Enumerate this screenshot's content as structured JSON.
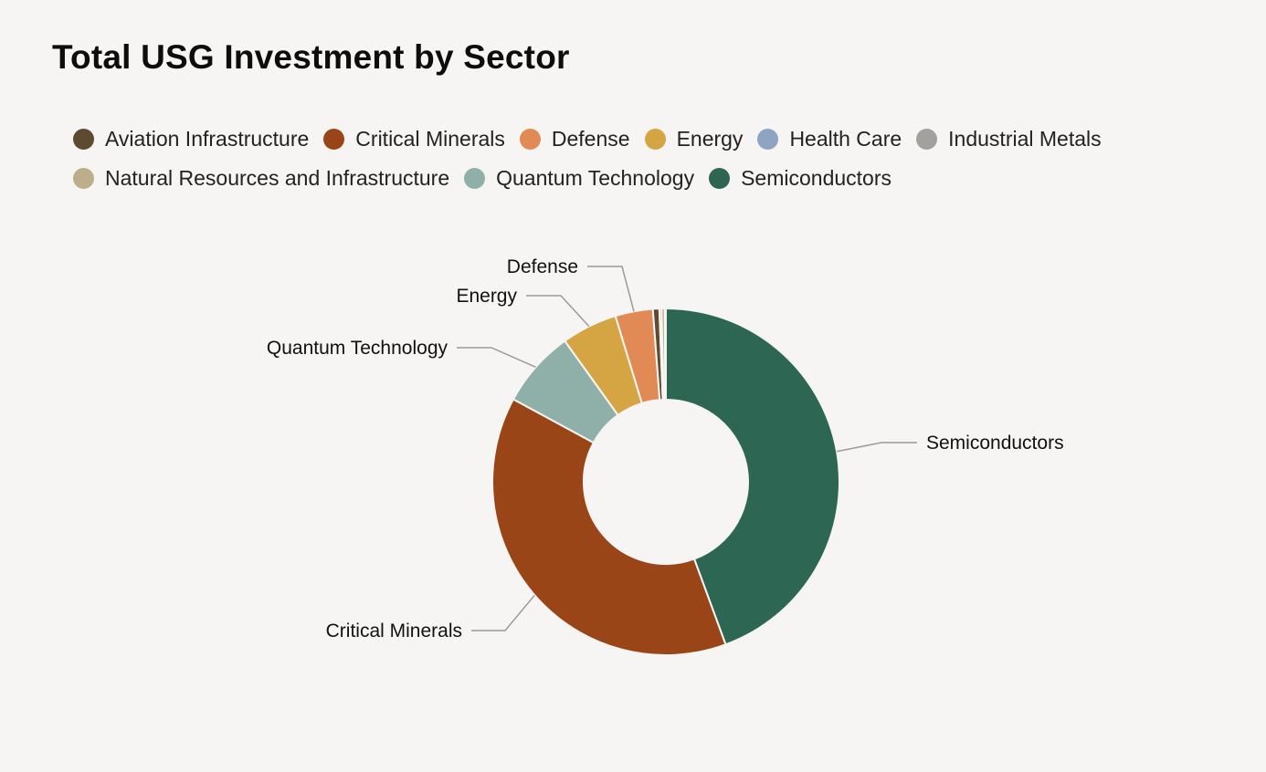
{
  "chart_data": {
    "type": "pie",
    "title": "Total USG Investment by Sector",
    "donut": true,
    "legend_position": "top",
    "categories": [
      "Aviation Infrastructure",
      "Critical Minerals",
      "Defense",
      "Energy",
      "Health Care",
      "Industrial Metals",
      "Natural Resources and Infrastructure",
      "Quantum Technology",
      "Semiconductors"
    ],
    "values": [
      0.6,
      38.5,
      3.5,
      5.2,
      0.1,
      0.2,
      0.3,
      7.2,
      44.4
    ],
    "colors": [
      "#5e4b2f",
      "#9a4518",
      "#e18a55",
      "#d4a542",
      "#8fa3c2",
      "#a3a09d",
      "#bcae8a",
      "#8fb0a9",
      "#2d6753"
    ],
    "callouts": [
      "Semiconductors",
      "Critical Minerals",
      "Quantum Technology",
      "Energy",
      "Defense"
    ]
  }
}
